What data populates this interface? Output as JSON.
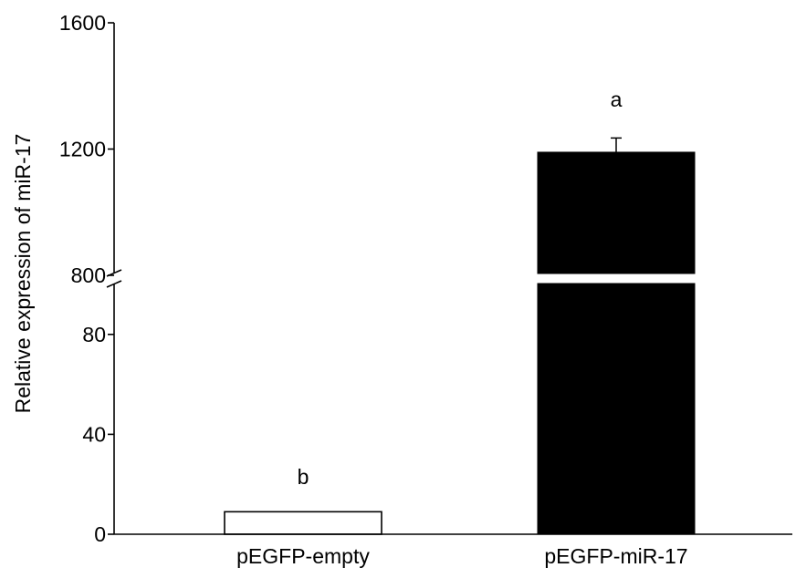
{
  "chart_data": {
    "type": "bar",
    "categories": [
      "pEGFP-empty",
      "pEGFP-miR-17"
    ],
    "values": [
      9,
      1190
    ],
    "errors": [
      0,
      45
    ],
    "significance_labels": [
      "b",
      "a"
    ],
    "bar_colors": [
      "#ffffff",
      "#000000"
    ],
    "ylabel": "Relative expression of miR-17",
    "y_lower_segment": {
      "range": [
        0,
        100
      ],
      "ticks": [
        0,
        40,
        80
      ]
    },
    "y_upper_segment": {
      "range": [
        800,
        1600
      ],
      "ticks": [
        800,
        1200,
        1600
      ]
    },
    "axis_break": true,
    "grid": false,
    "legend": "none"
  }
}
